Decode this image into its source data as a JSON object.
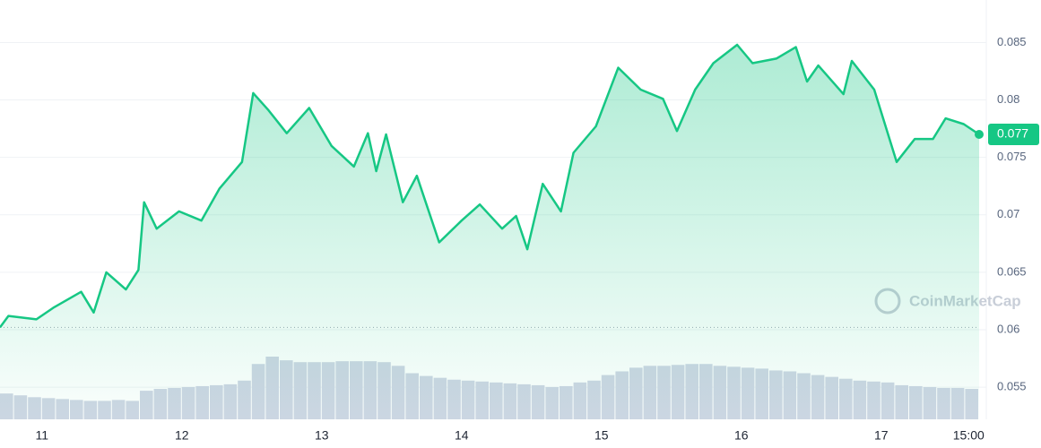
{
  "chart_data": {
    "type": "line",
    "xlim": [
      10.7,
      17.7
    ],
    "xticks": [
      11,
      12,
      13,
      14,
      15,
      16,
      17,
      {
        "value": 17.625,
        "label": "15:00"
      }
    ],
    "ylim": [
      0.0522,
      0.0887
    ],
    "yticks": [
      0.055,
      0.06,
      0.065,
      0.07,
      0.075,
      0.08,
      0.085
    ],
    "grid": true,
    "reference_line": 0.0602,
    "last_price": 0.077,
    "watermark": "CoinMarketCap",
    "series": [
      {
        "color": "#16c784",
        "x": [
          10.7,
          10.76,
          10.96,
          11.08,
          11.28,
          11.37,
          11.46,
          11.6,
          11.69,
          11.73,
          11.82,
          11.98,
          12.14,
          12.27,
          12.43,
          12.51,
          12.62,
          12.75,
          12.91,
          13.07,
          13.23,
          13.33,
          13.39,
          13.46,
          13.58,
          13.68,
          13.84,
          14.0,
          14.13,
          14.29,
          14.39,
          14.47,
          14.58,
          14.71,
          14.8,
          14.96,
          15.12,
          15.28,
          15.44,
          15.54,
          15.67,
          15.8,
          15.97,
          16.08,
          16.25,
          16.39,
          16.47,
          16.55,
          16.73,
          16.79,
          16.95,
          17.11,
          17.24,
          17.37,
          17.46,
          17.59,
          17.7
        ],
        "values": [
          0.0602,
          0.0612,
          0.0609,
          0.0619,
          0.0633,
          0.0615,
          0.065,
          0.0635,
          0.0652,
          0.0711,
          0.0688,
          0.0703,
          0.0695,
          0.0723,
          0.0746,
          0.0806,
          0.0791,
          0.0771,
          0.0793,
          0.076,
          0.0742,
          0.0771,
          0.0738,
          0.077,
          0.0711,
          0.0734,
          0.0676,
          0.0695,
          0.0709,
          0.0688,
          0.0699,
          0.067,
          0.0727,
          0.0703,
          0.0754,
          0.0777,
          0.0828,
          0.0809,
          0.0801,
          0.0773,
          0.0809,
          0.0832,
          0.0848,
          0.0832,
          0.0836,
          0.0846,
          0.0816,
          0.083,
          0.0805,
          0.0834,
          0.0809,
          0.0746,
          0.0766,
          0.0766,
          0.0784,
          0.0779,
          0.077
        ]
      }
    ],
    "volume": {
      "color": "#cfd6e4",
      "x": [
        10.7,
        10.8,
        10.9,
        11.0,
        11.1,
        11.2,
        11.3,
        11.4,
        11.5,
        11.6,
        11.7,
        11.8,
        11.9,
        12.0,
        12.1,
        12.2,
        12.3,
        12.4,
        12.5,
        12.6,
        12.7,
        12.8,
        12.9,
        13.0,
        13.1,
        13.2,
        13.3,
        13.4,
        13.5,
        13.6,
        13.7,
        13.8,
        13.9,
        14.0,
        14.1,
        14.2,
        14.3,
        14.4,
        14.5,
        14.6,
        14.7,
        14.8,
        14.9,
        15.0,
        15.1,
        15.2,
        15.3,
        15.4,
        15.5,
        15.6,
        15.7,
        15.8,
        15.9,
        16.0,
        16.1,
        16.2,
        16.3,
        16.4,
        16.5,
        16.6,
        16.7,
        16.8,
        16.9,
        17.0,
        17.1,
        17.2,
        17.3,
        17.4,
        17.5,
        17.6
      ],
      "values": [
        28,
        26,
        24,
        23,
        22,
        21,
        20,
        20,
        21,
        20,
        31,
        33,
        34,
        35,
        36,
        37,
        38,
        42,
        60,
        68,
        64,
        62,
        62,
        62,
        63,
        63,
        63,
        62,
        58,
        50,
        47,
        45,
        43,
        42,
        41,
        40,
        39,
        38,
        37,
        35,
        36,
        40,
        42,
        48,
        52,
        56,
        58,
        58,
        59,
        60,
        60,
        58,
        57,
        56,
        55,
        53,
        52,
        50,
        48,
        46,
        44,
        42,
        41,
        40,
        37,
        36,
        35,
        34,
        34,
        33
      ]
    }
  }
}
